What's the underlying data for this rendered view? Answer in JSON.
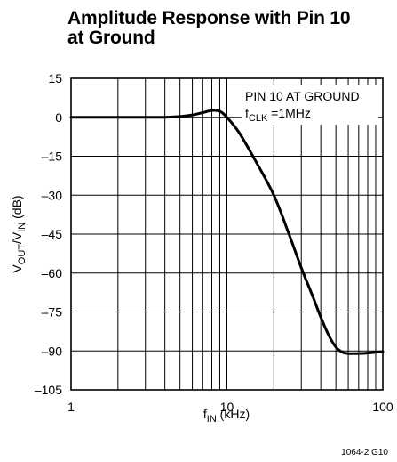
{
  "chart_data": {
    "type": "line",
    "title_lines": [
      "Amplitude Response with Pin 10",
      "at Ground"
    ],
    "xlabel": {
      "base": "f",
      "sub": "IN",
      "unit": " (kHz)"
    },
    "ylabel": {
      "p1": "V",
      "s1": "OUT",
      "p2": "/V",
      "s2": "IN",
      "unit": " (dB)"
    },
    "x_scale": "log",
    "xlim": [
      1,
      100
    ],
    "ylim": [
      -105,
      15
    ],
    "x_ticks": [
      1,
      10,
      100
    ],
    "x_tick_labels": [
      "1",
      "10",
      "100"
    ],
    "y_ticks": [
      15,
      0,
      -15,
      -30,
      -45,
      -60,
      -75,
      -90,
      -105
    ],
    "y_tick_labels": [
      "15",
      "0",
      "–15",
      "–30",
      "–45",
      "–60",
      "–75",
      "–90",
      "–105"
    ],
    "grid": true,
    "annotation_line1": "PIN 10 AT GROUND",
    "annotation_line2": {
      "base": "f",
      "sub": "CLK",
      "rest": " =1MHz"
    },
    "figure_id": "1064-2 G10",
    "series": [
      {
        "x": [
          1,
          2,
          3,
          4,
          5,
          6,
          7,
          8,
          9,
          10,
          12,
          15,
          20,
          25,
          30,
          35,
          40,
          45,
          50,
          55,
          60,
          65,
          70,
          80,
          90,
          100
        ],
        "y": [
          0,
          0,
          0,
          0,
          0.3,
          0.9,
          1.8,
          2.6,
          2.3,
          0,
          -6,
          -16,
          -30,
          -45,
          -58,
          -68,
          -77,
          -84,
          -88.5,
          -90.5,
          -91,
          -91,
          -91,
          -90.8,
          -90.5,
          -90.3
        ]
      }
    ]
  }
}
